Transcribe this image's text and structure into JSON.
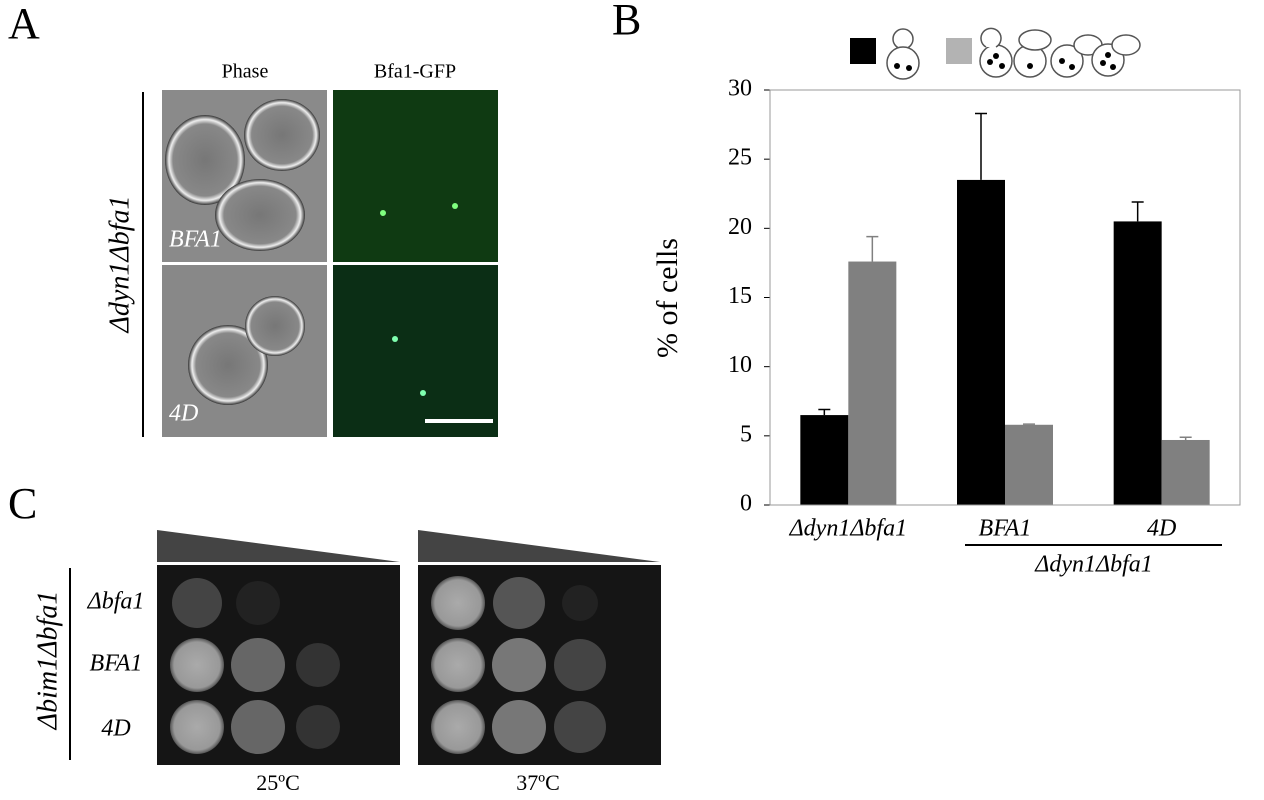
{
  "panel_a": {
    "label": "A",
    "columns": [
      "Phase",
      "Bfa1-GFP"
    ],
    "strain": "Δdyn1Δbfa1",
    "rows": [
      "BFA1",
      "4D"
    ]
  },
  "panel_b": {
    "label": "B"
  },
  "chart_data": {
    "type": "bar",
    "ylabel": "% of cells",
    "categories": [
      "Δdyn1Δbfa1",
      "BFA1",
      "4D"
    ],
    "group_label": "Δdyn1Δbfa1",
    "series": [
      {
        "color": "#000000",
        "values": [
          6.5,
          23.5,
          20.5
        ],
        "errors": [
          0.4,
          4.8,
          1.4
        ]
      },
      {
        "color": "#808080",
        "values": [
          17.6,
          5.8,
          4.7
        ],
        "errors": [
          1.8,
          0.05,
          0.2
        ]
      }
    ],
    "legend_colors": [
      "#000000",
      "#b3b3b3"
    ],
    "ylim": [
      0,
      30
    ],
    "yticks": [
      0,
      5,
      10,
      15,
      20,
      25,
      30
    ]
  },
  "panel_c": {
    "label": "C",
    "strain": "Δbim1Δbfa1",
    "rows": [
      "Δbfa1",
      "BFA1",
      "4D"
    ],
    "temperatures": [
      "25ºC",
      "37ºC"
    ]
  }
}
